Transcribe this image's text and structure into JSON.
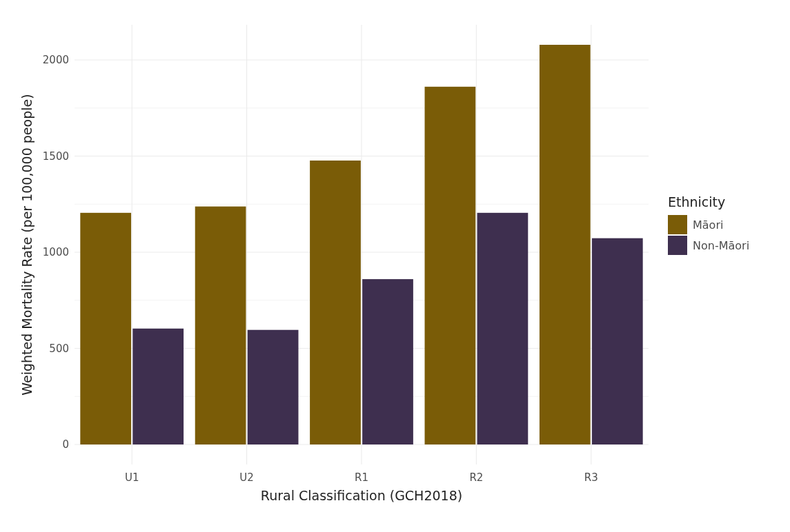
{
  "chart_data": {
    "type": "bar",
    "xlabel": "Rural Classification (GCH2018)",
    "ylabel": "Weighted Mortality Rate (per 100,000 people)",
    "legend_title": "Ethnicity",
    "categories": [
      "U1",
      "U2",
      "R1",
      "R2",
      "R3"
    ],
    "series": [
      {
        "name": "Māori",
        "color": "#7a5c07",
        "values": [
          1205,
          1238,
          1477,
          1861,
          2079
        ]
      },
      {
        "name": "Non-Māori",
        "color": "#3e2f4f",
        "values": [
          603,
          596,
          860,
          1205,
          1073
        ]
      }
    ],
    "ylim": [
      -104,
      2183
    ],
    "yticks": [
      0,
      {
        "value": 250,
        "label": null
      },
      500,
      {
        "value": 750,
        "label": null
      },
      1000,
      {
        "value": 1250,
        "label": null
      },
      1500,
      {
        "value": 1750,
        "label": null
      },
      2000
    ],
    "grid": true,
    "legend": "right"
  }
}
